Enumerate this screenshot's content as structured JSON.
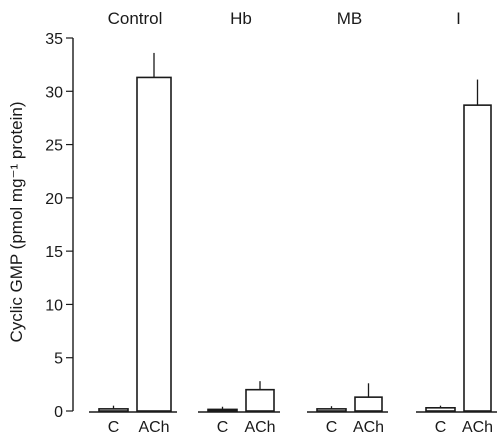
{
  "chart_data": {
    "type": "bar",
    "ylabel": "Cyclic GMP (pmol mg⁻¹ protein)",
    "ylim": [
      0,
      35
    ],
    "yticks": [
      0,
      5,
      10,
      15,
      20,
      25,
      30,
      35
    ],
    "grid": false,
    "groups": [
      {
        "name": "Control",
        "bars": [
          {
            "category": "C",
            "value": 0.2,
            "error": 0.3
          },
          {
            "category": "ACh",
            "value": 31.3,
            "error": 2.3
          }
        ]
      },
      {
        "name": "Hb",
        "bars": [
          {
            "category": "C",
            "value": 0.15,
            "error": 0.25
          },
          {
            "category": "ACh",
            "value": 2.0,
            "error": 0.8
          }
        ]
      },
      {
        "name": "MB",
        "bars": [
          {
            "category": "C",
            "value": 0.2,
            "error": 0.25
          },
          {
            "category": "ACh",
            "value": 1.3,
            "error": 1.3
          }
        ]
      },
      {
        "name": "I",
        "bars": [
          {
            "category": "C",
            "value": 0.3,
            "error": 0.2
          },
          {
            "category": "ACh",
            "value": 28.7,
            "error": 2.4
          }
        ]
      }
    ]
  }
}
